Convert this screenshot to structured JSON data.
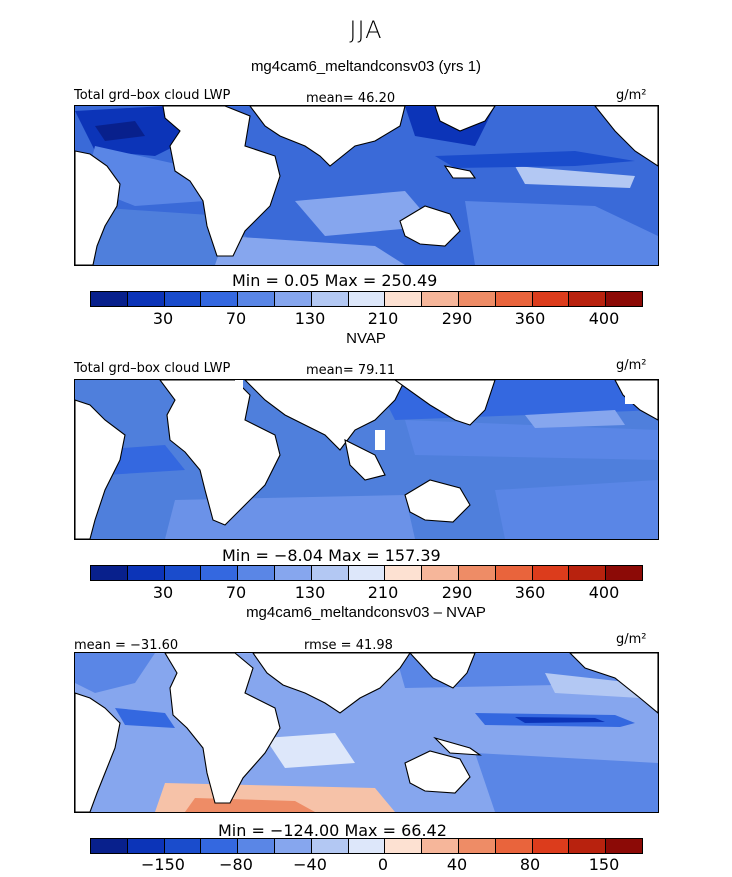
{
  "figure": {
    "season": "JJA",
    "units": "g/m²",
    "colorbar_colors": [
      "#08208c",
      "#0c34b8",
      "#1a4ccc",
      "#3468e0",
      "#5a86e6",
      "#86a6ee",
      "#b3c8f3",
      "#dde7fa",
      "#fde1d2",
      "#f6b69a",
      "#ee8c66",
      "#e9643c",
      "#dc3c1c",
      "#b8220e",
      "#8c0a06"
    ]
  },
  "panels": [
    {
      "title": "mg4cam6_meltandconsv03 (yrs 1)",
      "left_label": "Total grd–box cloud LWP",
      "center_label": "mean=  46.20",
      "units": "g/m²",
      "min_max": "Min =    0.05 Max = 250.49",
      "ticks": [
        "30",
        "70",
        "130",
        "210",
        "290",
        "360",
        "400"
      ]
    },
    {
      "title": "NVAP",
      "left_label": "Total grd–box cloud LWP",
      "center_label": "mean=  79.11",
      "units": "g/m²",
      "min_max": "Min =   −8.04 Max = 157.39",
      "ticks": [
        "30",
        "70",
        "130",
        "210",
        "290",
        "360",
        "400"
      ]
    },
    {
      "title": "mg4cam6_meltandconsv03 – NVAP",
      "left_label": "mean = −31.60",
      "center_label": "rmse =  41.98",
      "units": "g/m²",
      "min_max": "Min = −124.00 Max =  66.42",
      "ticks": [
        "−150",
        "−80",
        "−40",
        "0",
        "40",
        "80",
        "150"
      ]
    }
  ]
}
